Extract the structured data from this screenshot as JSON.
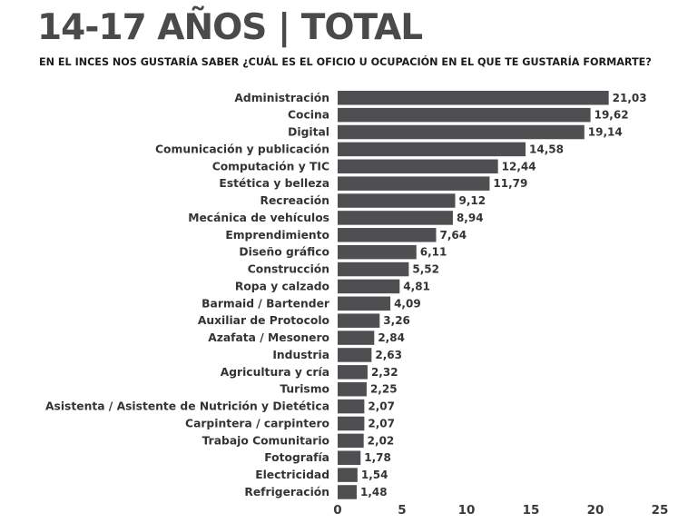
{
  "title": "14-17 AÑOS | TOTAL",
  "subtitle": "EN EL INCES NOS GUSTARÍA SABER ¿CUÁL ES EL OFICIO U OCUPACIÓN EN EL QUE TE GUSTARÍA FORMARTE?",
  "colors": {
    "bar": "#4f4f52",
    "text": "#333333"
  },
  "chart_data": {
    "type": "bar",
    "orientation": "horizontal",
    "categories": [
      "Administración",
      "Cocina",
      "Digital",
      "Comunicación y publicación",
      "Computación y TIC",
      "Estética y belleza",
      "Recreación",
      "Mecánica de vehículos",
      "Emprendimiento",
      "Diseño gráfico",
      "Construcción",
      "Ropa y calzado",
      "Barmaid / Bartender",
      "Auxiliar de Protocolo",
      "Azafata / Mesonero",
      "Industria",
      "Agricultura y cría",
      "Turismo",
      "Asistenta / Asistente de Nutrición y Dietética",
      "Carpintera / carpintero",
      "Trabajo Comunitario",
      "Fotografía",
      "Electricidad",
      "Refrigeración"
    ],
    "values": [
      21.03,
      19.62,
      19.14,
      14.58,
      12.44,
      11.79,
      9.12,
      8.94,
      7.64,
      6.11,
      5.52,
      4.81,
      4.09,
      3.26,
      2.84,
      2.63,
      2.32,
      2.25,
      2.07,
      2.07,
      2.02,
      1.78,
      1.54,
      1.48
    ],
    "value_labels": [
      "21,03",
      "19,62",
      "19,14",
      "14,58",
      "12,44",
      "11,79",
      "9,12",
      "8,94",
      "7,64",
      "6,11",
      "5,52",
      "4,81",
      "4,09",
      "3,26",
      "2,84",
      "2,63",
      "2,32",
      "2,25",
      "2,07",
      "2,07",
      "2,02",
      "1,78",
      "1,54",
      "1,48"
    ],
    "xlim": [
      0,
      25
    ],
    "xticks": [
      "0",
      "5",
      "10",
      "15",
      "20",
      "25"
    ],
    "grid": false,
    "legend": "none"
  }
}
